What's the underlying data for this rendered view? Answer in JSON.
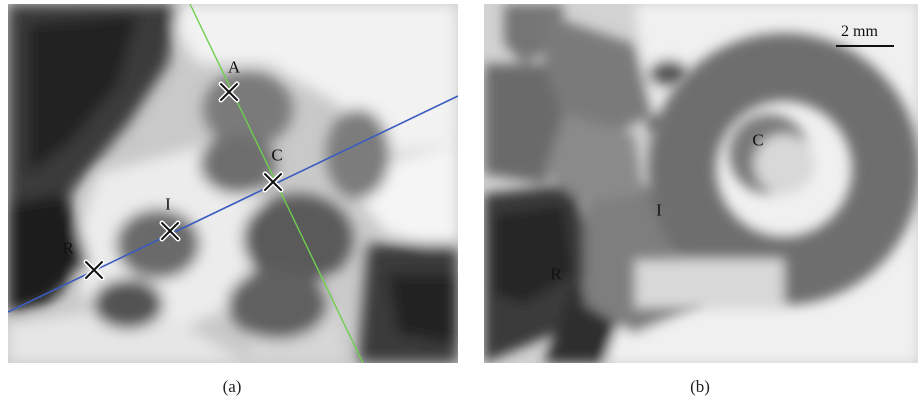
{
  "panels": {
    "a": {
      "caption": "(a)",
      "labels": {
        "A": "A",
        "C": "C",
        "I": "I",
        "R": "R"
      },
      "colors": {
        "axis_line": "#3a5bbf",
        "perpendicular_line": "#6fcf4f"
      }
    },
    "b": {
      "caption": "(b)",
      "labels": {
        "C": "C",
        "I": "I",
        "R": "R"
      },
      "colors": {
        "axis_line": "#e23a3a",
        "perpendicular_line": "#7ccf5a"
      },
      "scale_bar": {
        "label": "2 mm"
      }
    }
  },
  "marker_icon": "x-marker-icon"
}
